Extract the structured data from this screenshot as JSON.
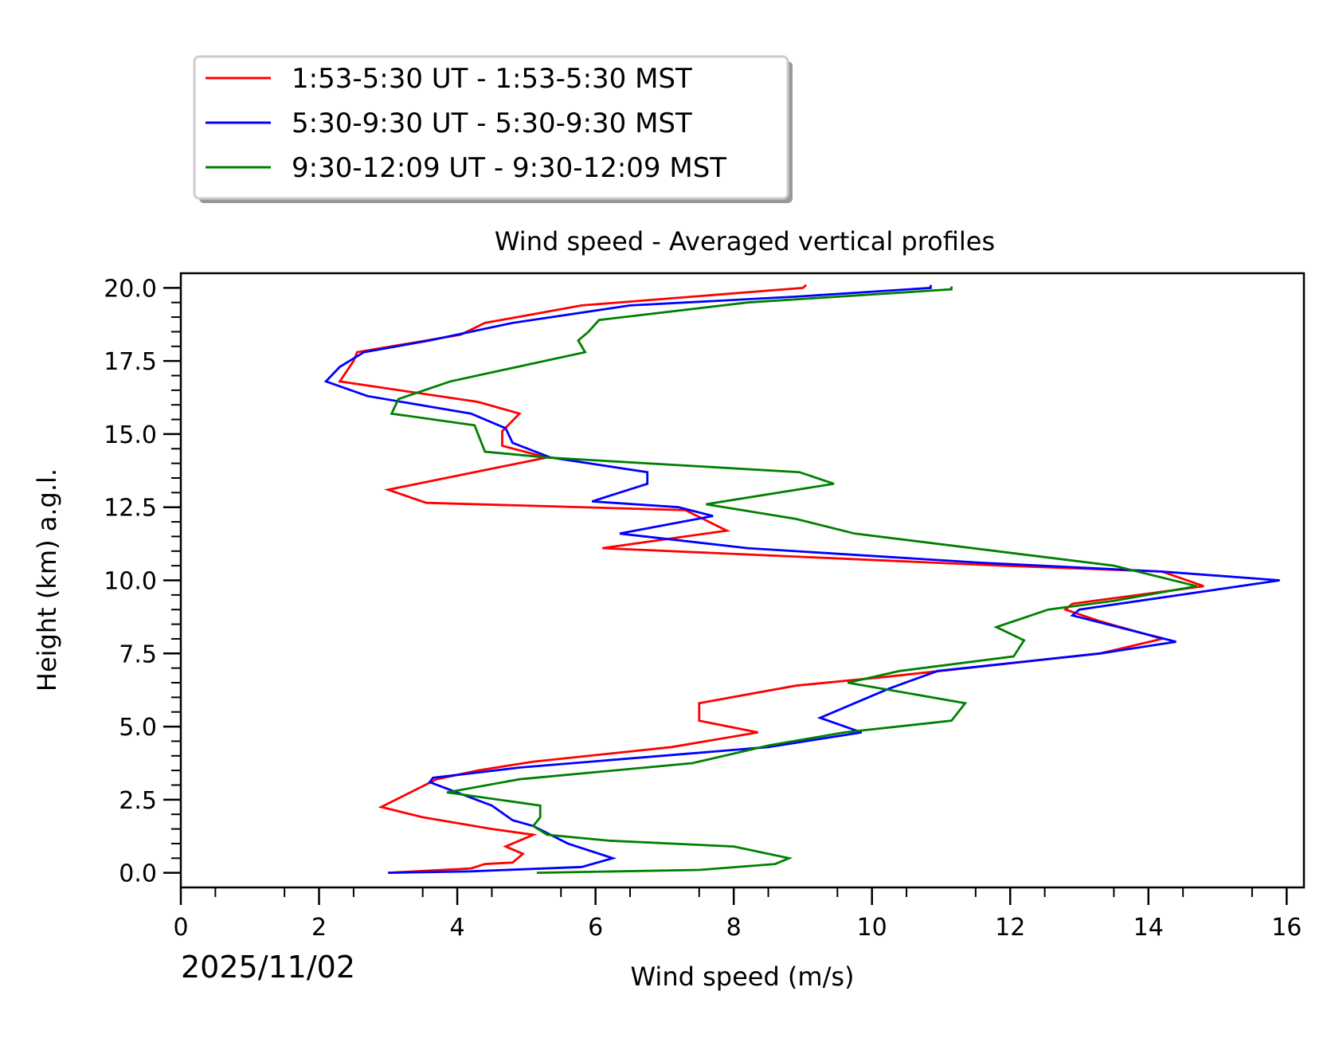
{
  "chart_data": {
    "type": "line",
    "title": "Wind speed - Averaged vertical profiles",
    "xlabel": "Wind speed (m/s)",
    "ylabel": "Height (km) a.g.l.",
    "date_label": "2025/11/02",
    "xlim": [
      0,
      16.25
    ],
    "ylim": [
      -0.5,
      20.5
    ],
    "x_ticks": [
      "0",
      "2",
      "4",
      "6",
      "8",
      "10",
      "12",
      "14",
      "16"
    ],
    "y_ticks": [
      "0.0",
      "2.5",
      "5.0",
      "7.5",
      "10.0",
      "12.5",
      "15.0",
      "17.5",
      "20.0"
    ],
    "legend_position": "above-left",
    "series": [
      {
        "name": "1:53-5:30 UT - 1:53-5:30 MST",
        "color": "#ff0000",
        "points": [
          [
            3.0,
            0.0
          ],
          [
            4.2,
            0.15
          ],
          [
            4.4,
            0.3
          ],
          [
            4.8,
            0.35
          ],
          [
            4.95,
            0.65
          ],
          [
            4.7,
            0.9
          ],
          [
            5.1,
            1.3
          ],
          [
            4.5,
            1.5
          ],
          [
            3.5,
            1.9
          ],
          [
            2.9,
            2.25
          ],
          [
            3.7,
            3.2
          ],
          [
            4.3,
            3.5
          ],
          [
            5.1,
            3.8
          ],
          [
            7.1,
            4.3
          ],
          [
            8.35,
            4.8
          ],
          [
            7.5,
            5.2
          ],
          [
            7.5,
            5.8
          ],
          [
            8.9,
            6.4
          ],
          [
            10.2,
            6.7
          ],
          [
            13.3,
            7.5
          ],
          [
            14.2,
            8.0
          ],
          [
            13.3,
            8.6
          ],
          [
            12.8,
            9.0
          ],
          [
            12.9,
            9.2
          ],
          [
            14.8,
            9.8
          ],
          [
            14.2,
            10.3
          ],
          [
            11.9,
            10.5
          ],
          [
            6.1,
            11.1
          ],
          [
            7.9,
            11.7
          ],
          [
            7.3,
            12.4
          ],
          [
            3.55,
            12.65
          ],
          [
            3.0,
            13.1
          ],
          [
            5.3,
            14.2
          ],
          [
            4.65,
            14.6
          ],
          [
            4.65,
            15.1
          ],
          [
            4.9,
            15.7
          ],
          [
            4.3,
            16.1
          ],
          [
            2.3,
            16.8
          ],
          [
            2.5,
            17.5
          ],
          [
            2.55,
            17.8
          ],
          [
            4.05,
            18.4
          ],
          [
            4.4,
            18.8
          ],
          [
            5.8,
            19.4
          ],
          [
            9.0,
            20.0
          ],
          [
            9.05,
            20.1
          ]
        ]
      },
      {
        "name": "5:30-9:30 UT - 5:30-9:30 MST",
        "color": "#0000ff",
        "points": [
          [
            3.0,
            0.0
          ],
          [
            4.2,
            0.05
          ],
          [
            5.8,
            0.2
          ],
          [
            6.25,
            0.5
          ],
          [
            5.6,
            1.0
          ],
          [
            5.1,
            1.6
          ],
          [
            4.8,
            1.8
          ],
          [
            4.5,
            2.3
          ],
          [
            3.6,
            3.1
          ],
          [
            3.65,
            3.25
          ],
          [
            4.9,
            3.6
          ],
          [
            8.5,
            4.3
          ],
          [
            9.85,
            4.8
          ],
          [
            9.25,
            5.3
          ],
          [
            9.75,
            5.8
          ],
          [
            10.25,
            6.3
          ],
          [
            10.95,
            6.9
          ],
          [
            13.3,
            7.5
          ],
          [
            14.4,
            7.9
          ],
          [
            12.9,
            8.8
          ],
          [
            13.0,
            9.0
          ],
          [
            15.9,
            10.0
          ],
          [
            14.2,
            10.3
          ],
          [
            11.6,
            10.6
          ],
          [
            8.2,
            11.1
          ],
          [
            6.35,
            11.6
          ],
          [
            7.7,
            12.2
          ],
          [
            7.2,
            12.5
          ],
          [
            5.95,
            12.7
          ],
          [
            6.75,
            13.3
          ],
          [
            6.75,
            13.7
          ],
          [
            5.35,
            14.2
          ],
          [
            4.8,
            14.7
          ],
          [
            4.7,
            15.2
          ],
          [
            4.2,
            15.7
          ],
          [
            2.7,
            16.3
          ],
          [
            2.1,
            16.8
          ],
          [
            2.3,
            17.3
          ],
          [
            2.65,
            17.8
          ],
          [
            3.6,
            18.2
          ],
          [
            4.8,
            18.8
          ],
          [
            6.5,
            19.4
          ],
          [
            8.9,
            19.7
          ],
          [
            10.85,
            20.0
          ],
          [
            10.85,
            20.1
          ]
        ]
      },
      {
        "name": "9:30-12:09 UT - 9:30-12:09 MST",
        "color": "#008000",
        "points": [
          [
            5.15,
            0.0
          ],
          [
            7.5,
            0.1
          ],
          [
            8.6,
            0.3
          ],
          [
            8.8,
            0.5
          ],
          [
            8.0,
            0.9
          ],
          [
            6.2,
            1.1
          ],
          [
            5.3,
            1.3
          ],
          [
            5.1,
            1.6
          ],
          [
            5.2,
            1.9
          ],
          [
            5.2,
            2.3
          ],
          [
            4.0,
            2.7
          ],
          [
            3.85,
            2.75
          ],
          [
            4.9,
            3.2
          ],
          [
            7.4,
            3.75
          ],
          [
            8.5,
            4.35
          ],
          [
            9.6,
            4.8
          ],
          [
            11.15,
            5.2
          ],
          [
            11.35,
            5.8
          ],
          [
            9.65,
            6.5
          ],
          [
            10.4,
            6.9
          ],
          [
            12.05,
            7.4
          ],
          [
            12.2,
            7.95
          ],
          [
            11.8,
            8.4
          ],
          [
            12.55,
            9.0
          ],
          [
            13.5,
            9.3
          ],
          [
            14.7,
            9.8
          ],
          [
            13.5,
            10.5
          ],
          [
            9.75,
            11.6
          ],
          [
            8.9,
            12.1
          ],
          [
            7.6,
            12.6
          ],
          [
            9.45,
            13.3
          ],
          [
            8.95,
            13.7
          ],
          [
            5.3,
            14.2
          ],
          [
            4.4,
            14.4
          ],
          [
            4.25,
            15.3
          ],
          [
            3.05,
            15.7
          ],
          [
            3.15,
            16.2
          ],
          [
            3.9,
            16.8
          ],
          [
            5.85,
            17.8
          ],
          [
            5.75,
            18.2
          ],
          [
            5.9,
            18.5
          ],
          [
            6.05,
            18.9
          ],
          [
            8.2,
            19.5
          ],
          [
            11.15,
            19.95
          ],
          [
            11.15,
            20.05
          ]
        ]
      }
    ]
  }
}
